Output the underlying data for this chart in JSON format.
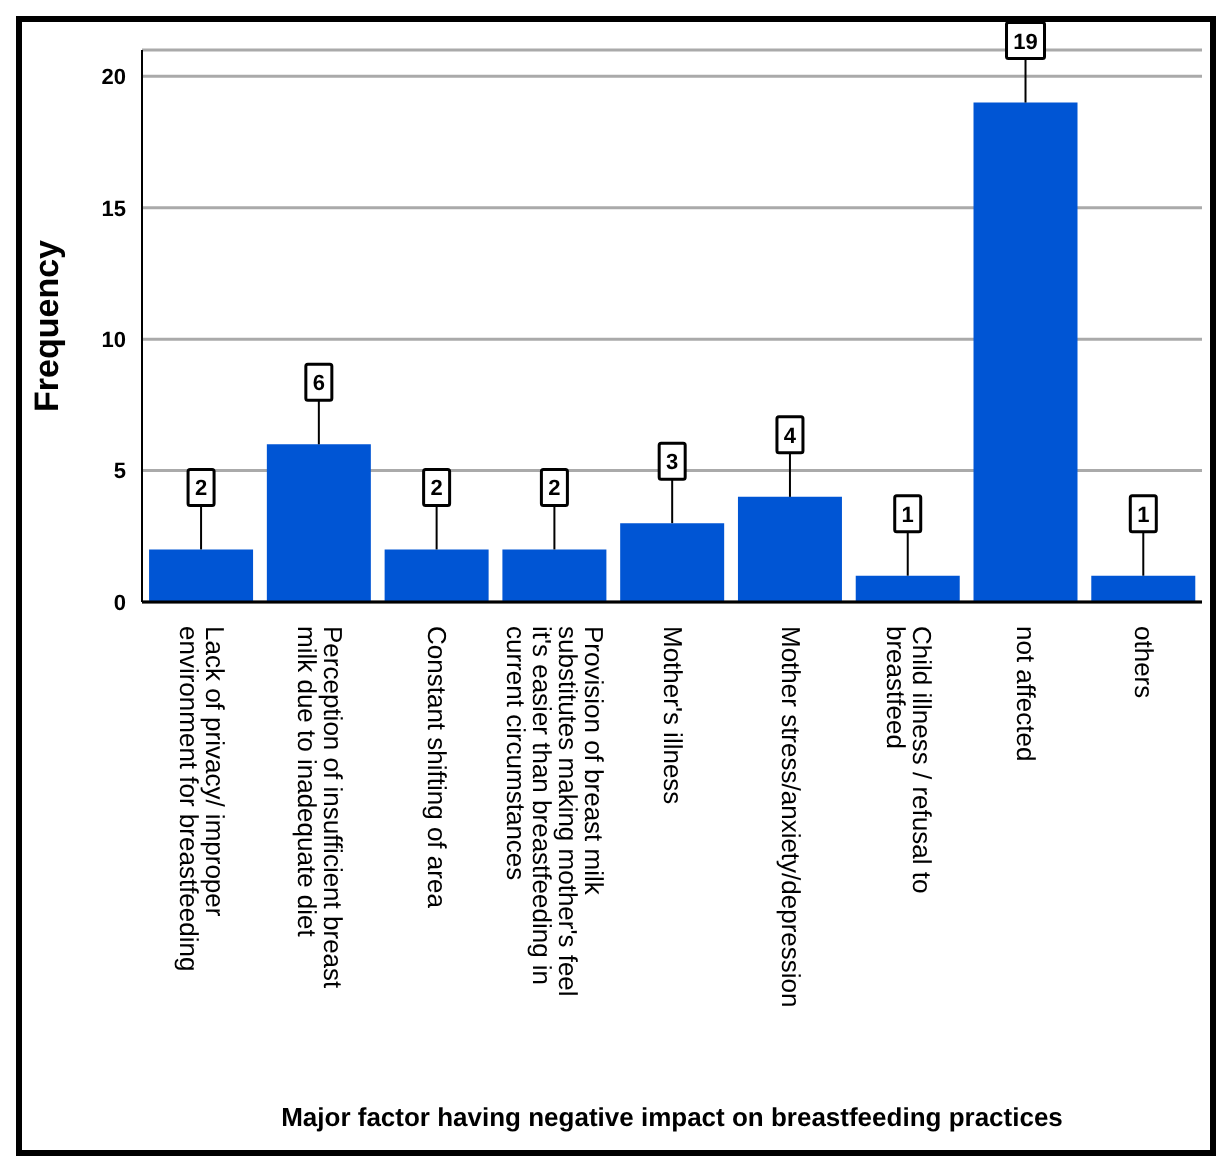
{
  "chart_data": {
    "type": "bar",
    "xlabel": "Major factor having negative impact on breastfeeding practices",
    "ylabel": "Frequency",
    "categories": [
      "Lack of privacy/ improper environment for breastfeeding",
      "Perception of insufficient breast milk due to inadequate diet",
      "Constant shifting of area",
      "Provision of breast milk substitutes making mother's feel it's easier than breastfeeding in current circumstances",
      "Mother's illness",
      "Mother stress/anxiety/depression",
      "Child illness / refusal to breastfeed",
      "not affected",
      "others"
    ],
    "values": [
      2,
      6,
      2,
      2,
      3,
      4,
      1,
      19,
      1
    ],
    "color": "#0055d4",
    "ylim": [
      0,
      21
    ],
    "yticks": [
      0,
      5,
      10,
      15,
      20
    ],
    "grid": "y",
    "data_labels": true
  }
}
